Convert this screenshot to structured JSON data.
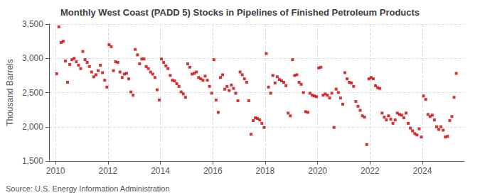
{
  "chart_data": {
    "type": "scatter",
    "title": "Monthly West Coast (PADD 5) Stocks in Pipelines of Finished Petroleum Products",
    "y_label": "Thousand Barrels",
    "annotations": [
      "Source: U.S. Energy Information Administration"
    ],
    "color": "#cc0000",
    "marker": "square",
    "grid": true,
    "xlim": [
      2009.75,
      2025.6
    ],
    "xticks": [
      2010,
      2012,
      2014,
      2016,
      2018,
      2020,
      2022,
      2024
    ],
    "ylim": [
      1500,
      3500
    ],
    "yticks": [
      {
        "value": 1500,
        "label": "1,500"
      },
      {
        "value": 2000,
        "label": "2,000"
      },
      {
        "value": 2500,
        "label": "2,500"
      },
      {
        "value": 3000,
        "label": "3,000"
      },
      {
        "value": 3500,
        "label": "3,500"
      }
    ],
    "x": [
      2010.0416666666667,
      2010.125,
      2010.2083333333333,
      2010.2916666666667,
      2010.375,
      2010.4583333333333,
      2010.5416666666667,
      2010.625,
      2010.7083333333333,
      2010.7916666666667,
      2010.875,
      2010.9583333333333,
      2011.0416666666667,
      2011.125,
      2011.2083333333333,
      2011.2916666666667,
      2011.375,
      2011.4583333333333,
      2011.5416666666667,
      2011.625,
      2011.7083333333333,
      2011.7916666666667,
      2011.875,
      2011.9583333333333,
      2012.0416666666667,
      2012.125,
      2012.2083333333333,
      2012.2916666666667,
      2012.375,
      2012.4583333333333,
      2012.5416666666667,
      2012.625,
      2012.7083333333333,
      2012.7916666666667,
      2012.875,
      2012.9583333333333,
      2013.0416666666667,
      2013.125,
      2013.2083333333333,
      2013.2916666666667,
      2013.375,
      2013.4583333333333,
      2013.5416666666667,
      2013.625,
      2013.7083333333333,
      2013.7916666666667,
      2013.875,
      2013.9583333333333,
      2014.0416666666667,
      2014.125,
      2014.2083333333333,
      2014.2916666666667,
      2014.375,
      2014.4583333333333,
      2014.5416666666667,
      2014.625,
      2014.7083333333333,
      2014.7916666666667,
      2014.875,
      2014.9583333333333,
      2015.0416666666667,
      2015.125,
      2015.2083333333333,
      2015.2916666666667,
      2015.375,
      2015.4583333333333,
      2015.5416666666667,
      2015.625,
      2015.7083333333333,
      2015.7916666666667,
      2015.875,
      2015.9583333333333,
      2016.0416666666667,
      2016.125,
      2016.2083333333333,
      2016.2916666666667,
      2016.375,
      2016.4583333333333,
      2016.5416666666667,
      2016.625,
      2016.7083333333333,
      2016.7916666666667,
      2016.875,
      2016.9583333333333,
      2017.0416666666667,
      2017.125,
      2017.2083333333333,
      2017.2916666666667,
      2017.375,
      2017.4583333333333,
      2017.5416666666667,
      2017.625,
      2017.7083333333333,
      2017.7916666666667,
      2017.875,
      2017.9583333333333,
      2018.0416666666667,
      2018.125,
      2018.2083333333333,
      2018.2916666666667,
      2018.375,
      2018.4583333333333,
      2018.5416666666667,
      2018.625,
      2018.7083333333333,
      2018.7916666666667,
      2018.875,
      2018.9583333333333,
      2019.0416666666667,
      2019.125,
      2019.2083333333333,
      2019.2916666666667,
      2019.375,
      2019.4583333333333,
      2019.5416666666667,
      2019.625,
      2019.7083333333333,
      2019.7916666666667,
      2019.875,
      2019.9583333333333,
      2020.0416666666667,
      2020.125,
      2020.2083333333333,
      2020.2916666666667,
      2020.375,
      2020.4583333333333,
      2020.5416666666667,
      2020.625,
      2020.7083333333333,
      2020.7916666666667,
      2020.875,
      2020.9583333333333,
      2021.0416666666667,
      2021.125,
      2021.2083333333333,
      2021.2916666666667,
      2021.375,
      2021.4583333333333,
      2021.5416666666667,
      2021.625,
      2021.7083333333333,
      2021.7916666666667,
      2021.875,
      2021.9583333333333,
      2022.0416666666667,
      2022.125,
      2022.2083333333333,
      2022.2916666666667,
      2022.375,
      2022.4583333333333,
      2022.5416666666667,
      2022.625,
      2022.7083333333333,
      2022.7916666666667,
      2022.875,
      2022.9583333333333,
      2023.0416666666667,
      2023.125,
      2023.2083333333333,
      2023.2916666666667,
      2023.375,
      2023.4583333333333,
      2023.5416666666667,
      2023.625,
      2023.7083333333333,
      2023.7916666666667,
      2023.875,
      2023.9583333333333,
      2024.0416666666667,
      2024.125,
      2024.2083333333333,
      2024.2916666666667,
      2024.375,
      2024.4583333333333,
      2024.5416666666667,
      2024.625,
      2024.7083333333333,
      2024.7916666666667,
      2024.875,
      2024.9583333333333,
      2025.0416666666667,
      2025.125,
      2025.2083333333333,
      2025.2916666666667
    ],
    "values": [
      2775,
      3460,
      3230,
      3250,
      2960,
      2650,
      2910,
      2980,
      3000,
      2950,
      2900,
      2850,
      3100,
      2980,
      2940,
      2880,
      2800,
      2730,
      2760,
      2820,
      2900,
      2790,
      2680,
      2580,
      3200,
      3170,
      2820,
      2950,
      2940,
      2800,
      2720,
      2770,
      2780,
      2700,
      2510,
      2460,
      3130,
      3050,
      2920,
      2990,
      2990,
      2880,
      2850,
      2800,
      2770,
      2720,
      2540,
      2390,
      2990,
      2940,
      2890,
      2850,
      2750,
      2680,
      2670,
      2630,
      2590,
      2510,
      2480,
      2430,
      2920,
      2870,
      2770,
      2780,
      2800,
      2720,
      2700,
      2680,
      2740,
      2680,
      2590,
      2490,
      2980,
      2390,
      2210,
      2720,
      2760,
      2550,
      2590,
      2530,
      2610,
      2560,
      2490,
      2380,
      2800,
      2760,
      2700,
      2650,
      2380,
      1890,
      2090,
      2130,
      2120,
      2100,
      2050,
      1990,
      3070,
      2580,
      2490,
      2750,
      2640,
      2730,
      2690,
      2670,
      2650,
      2600,
      2200,
      2160,
      2980,
      2750,
      2760,
      2650,
      2620,
      2500,
      2220,
      2210,
      2490,
      2460,
      2450,
      2440,
      2860,
      2870,
      2460,
      2480,
      2460,
      2420,
      2490,
      1990,
      2550,
      2500,
      2420,
      2330,
      2790,
      2700,
      2650,
      2640,
      2590,
      2370,
      2300,
      2240,
      2160,
      2140,
      1740,
      2700,
      2720,
      2700,
      2600,
      2570,
      2560,
      2200,
      2140,
      2100,
      2160,
      2110,
      2050,
      2100,
      2200,
      2180,
      2170,
      2130,
      2200,
      2050,
      1980,
      1940,
      1900,
      1880,
      1970,
      1850,
      2450,
      2400,
      2180,
      2150,
      2170,
      2100,
      2000,
      1960,
      2000,
      1950,
      1850,
      1860,
      2090,
      2150,
      2430,
      2780
    ]
  }
}
